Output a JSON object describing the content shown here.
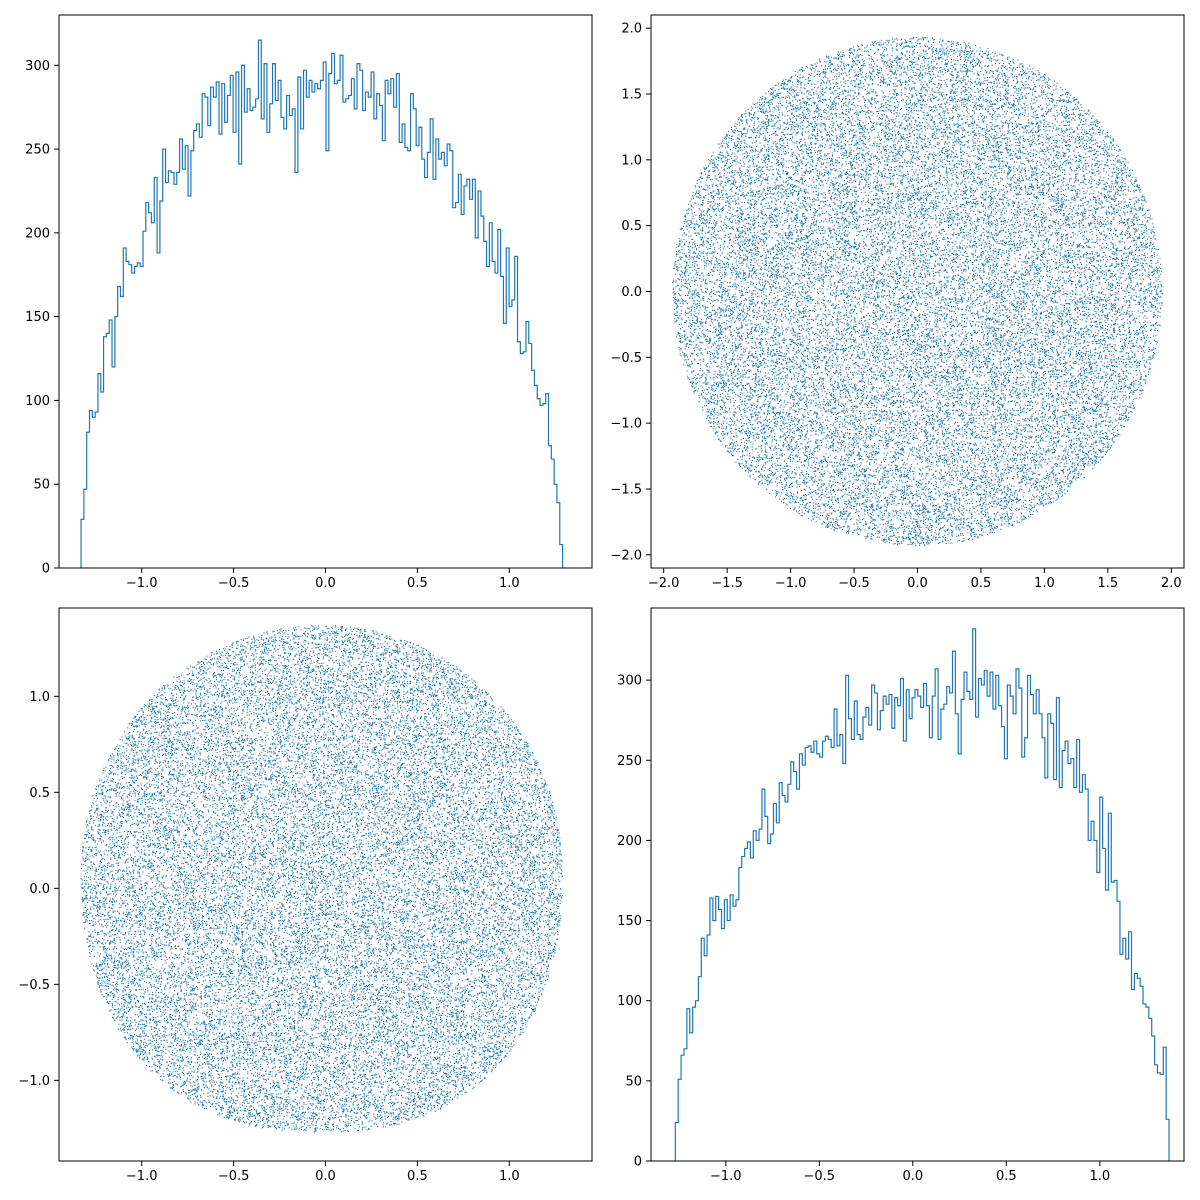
{
  "figure": {
    "colors": {
      "series": "#1f77b4",
      "frame": "#000000",
      "background": "#ffffff"
    }
  },
  "chart_data": [
    {
      "type": "histogram",
      "panel": "top-left",
      "title": "",
      "xlabel": "",
      "ylabel": "",
      "xlim": [
        -1.45,
        1.45
      ],
      "ylim": [
        0,
        330
      ],
      "xticks": [
        -1.0,
        -0.5,
        0.0,
        0.5,
        1.0
      ],
      "xtick_labels": [
        "−1.0",
        "−0.5",
        "0.0",
        "0.5",
        "1.0"
      ],
      "yticks": [
        0,
        50,
        100,
        150,
        200,
        250,
        300
      ],
      "ytick_labels": [
        "0",
        "50",
        "100",
        "150",
        "200",
        "250",
        "300"
      ],
      "bin_range": [
        -1.33,
        1.29
      ],
      "counts": [
        29,
        47,
        81,
        94,
        90,
        93,
        116,
        105,
        138,
        140,
        148,
        120,
        150,
        168,
        162,
        191,
        183,
        181,
        176,
        180,
        182,
        180,
        201,
        218,
        212,
        206,
        233,
        188,
        219,
        250,
        230,
        237,
        236,
        229,
        236,
        256,
        238,
        252,
        222,
        249,
        261,
        265,
        257,
        283,
        281,
        264,
        287,
        281,
        290,
        259,
        289,
        266,
        282,
        294,
        260,
        296,
        241,
        300,
        272,
        286,
        273,
        275,
        280,
        315,
        268,
        301,
        260,
        277,
        301,
        279,
        291,
        269,
        262,
        282,
        270,
        274,
        236,
        293,
        262,
        297,
        281,
        291,
        284,
        289,
        286,
        291,
        302,
        249,
        295,
        307,
        289,
        291,
        306,
        278,
        280,
        282,
        292,
        274,
        301,
        297,
        273,
        284,
        281,
        296,
        268,
        283,
        276,
        255,
        291,
        283,
        292,
        275,
        295,
        254,
        265,
        251,
        249,
        283,
        274,
        252,
        263,
        244,
        233,
        248,
        268,
        232,
        256,
        244,
        248,
        240,
        253,
        249,
        215,
        218,
        235,
        211,
        228,
        232,
        220,
        232,
        197,
        225,
        210,
        195,
        180,
        206,
        183,
        176,
        202,
        174,
        146,
        191,
        156,
        160,
        186,
        135,
        128,
        129,
        147,
        134,
        118,
        109,
        101,
        97,
        98,
        104,
        73,
        65,
        50,
        39,
        14
      ]
    },
    {
      "type": "scatter",
      "panel": "top-right",
      "title": "",
      "xlabel": "",
      "ylabel": "",
      "shape": "circle",
      "radius": 1.93,
      "center": [
        0,
        0
      ],
      "point_count": 30000,
      "xlim": [
        -2.1,
        2.1
      ],
      "ylim": [
        -2.1,
        2.1
      ],
      "xticks": [
        -2.0,
        -1.5,
        -1.0,
        -0.5,
        0.0,
        0.5,
        1.0,
        1.5,
        2.0
      ],
      "xtick_labels": [
        "−2.0",
        "−1.5",
        "−1.0",
        "−0.5",
        "0.0",
        "0.5",
        "1.0",
        "1.5",
        "2.0"
      ],
      "yticks": [
        -2.0,
        -1.5,
        -1.0,
        -0.5,
        0.0,
        0.5,
        1.0,
        1.5,
        2.0
      ],
      "ytick_labels": [
        "−2.0",
        "−1.5",
        "−1.0",
        "−0.5",
        "0.0",
        "0.5",
        "1.0",
        "1.5",
        "2.0"
      ]
    },
    {
      "type": "scatter",
      "panel": "bottom-left",
      "title": "",
      "xlabel": "",
      "ylabel": "",
      "shape": "rounded-blob",
      "point_count": 30000,
      "x_extent": [
        -1.33,
        1.29
      ],
      "y_extent": [
        -1.27,
        1.37
      ],
      "xlim": [
        -1.45,
        1.45
      ],
      "ylim": [
        -1.42,
        1.46
      ],
      "xticks": [
        -1.0,
        -0.5,
        0.0,
        0.5,
        1.0
      ],
      "xtick_labels": [
        "−1.0",
        "−0.5",
        "0.0",
        "0.5",
        "1.0"
      ],
      "yticks": [
        -1.0,
        -0.5,
        0.0,
        0.5,
        1.0
      ],
      "ytick_labels": [
        "−1.0",
        "−0.5",
        "0.0",
        "0.5",
        "1.0"
      ]
    },
    {
      "type": "histogram",
      "panel": "bottom-right",
      "title": "",
      "xlabel": "",
      "ylabel": "",
      "xlim": [
        -1.4,
        1.45
      ],
      "ylim": [
        0,
        345
      ],
      "xticks": [
        -1.0,
        -0.5,
        0.0,
        0.5,
        1.0
      ],
      "xtick_labels": [
        "−1.0",
        "−0.5",
        "0.0",
        "0.5",
        "1.0"
      ],
      "yticks": [
        0,
        50,
        100,
        150,
        200,
        250,
        300
      ],
      "ytick_labels": [
        "0",
        "50",
        "100",
        "150",
        "200",
        "250",
        "300"
      ],
      "bin_range": [
        -1.27,
        1.37
      ],
      "counts": [
        24,
        51,
        66,
        70,
        95,
        80,
        96,
        100,
        115,
        139,
        128,
        141,
        164,
        150,
        165,
        157,
        145,
        163,
        150,
        166,
        159,
        163,
        183,
        190,
        195,
        199,
        189,
        206,
        200,
        207,
        232,
        215,
        198,
        204,
        223,
        211,
        236,
        228,
        224,
        235,
        249,
        243,
        232,
        254,
        247,
        258,
        259,
        255,
        262,
        254,
        252,
        262,
        265,
        263,
        258,
        282,
        259,
        266,
        248,
        303,
        276,
        263,
        287,
        266,
        263,
        277,
        283,
        272,
        297,
        292,
        269,
        281,
        290,
        285,
        291,
        270,
        289,
        284,
        301,
        262,
        294,
        276,
        289,
        294,
        290,
        283,
        298,
        284,
        264,
        290,
        307,
        263,
        282,
        285,
        296,
        292,
        318,
        279,
        254,
        288,
        305,
        293,
        288,
        332,
        277,
        301,
        297,
        306,
        290,
        305,
        282,
        303,
        284,
        271,
        251,
        297,
        290,
        279,
        307,
        295,
        252,
        264,
        303,
        291,
        279,
        294,
        279,
        264,
        239,
        279,
        273,
        238,
        289,
        233,
        256,
        262,
        248,
        251,
        233,
        263,
        230,
        241,
        232,
        200,
        212,
        200,
        180,
        227,
        195,
        169,
        217,
        174,
        175,
        162,
        129,
        139,
        126,
        143,
        107,
        117,
        114,
        109,
        98,
        96,
        89,
        78,
        60,
        55,
        54,
        71,
        26
      ]
    }
  ]
}
